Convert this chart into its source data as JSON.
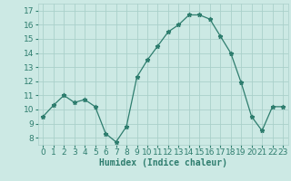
{
  "x": [
    0,
    1,
    2,
    3,
    4,
    5,
    6,
    7,
    8,
    9,
    10,
    11,
    12,
    13,
    14,
    15,
    16,
    17,
    18,
    19,
    20,
    21,
    22,
    23
  ],
  "y": [
    9.5,
    10.3,
    11.0,
    10.5,
    10.7,
    10.2,
    8.3,
    7.7,
    8.8,
    12.3,
    13.5,
    14.5,
    15.5,
    16.0,
    16.7,
    16.7,
    16.4,
    15.2,
    14.0,
    11.9,
    9.5,
    8.5,
    10.2,
    10.2
  ],
  "line_color": "#2e7d6e",
  "marker": "*",
  "marker_size": 3.5,
  "bg_color": "#cce9e4",
  "grid_color": "#aad0ca",
  "xlabel": "Humidex (Indice chaleur)",
  "ylabel_ticks": [
    8,
    9,
    10,
    11,
    12,
    13,
    14,
    15,
    16,
    17
  ],
  "ylim": [
    7.5,
    17.5
  ],
  "xlim": [
    -0.5,
    23.5
  ],
  "xticks": [
    0,
    1,
    2,
    3,
    4,
    5,
    6,
    7,
    8,
    9,
    10,
    11,
    12,
    13,
    14,
    15,
    16,
    17,
    18,
    19,
    20,
    21,
    22,
    23
  ],
  "xlabel_fontsize": 7,
  "tick_fontsize": 6.5
}
